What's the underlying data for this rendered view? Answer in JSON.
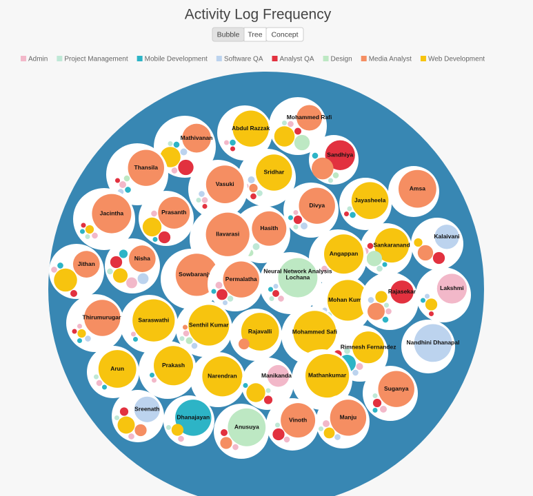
{
  "chart_data": {
    "type": "bubble",
    "title": "Activity Log Frequency",
    "views": [
      "Bubble",
      "Tree",
      "Concept"
    ],
    "active_view": "Bubble",
    "series": [
      {
        "name": "Admin",
        "color": "#f2b8c9"
      },
      {
        "name": "Project Management",
        "color": "#bfe8d6"
      },
      {
        "name": "Mobile Development",
        "color": "#2db4c6"
      },
      {
        "name": "Software QA",
        "color": "#bcd3ee"
      },
      {
        "name": "Analyst QA",
        "color": "#e2313f"
      },
      {
        "name": "Design",
        "color": "#bde8c3"
      },
      {
        "name": "Media Analyst",
        "color": "#f58e62"
      },
      {
        "name": "Web Development",
        "color": "#f7c40f"
      }
    ],
    "people": [
      {
        "name": "Mohammed Rafi",
        "values": [
          3,
          2,
          null,
          null,
          4,
          20,
          55,
          35
        ]
      },
      {
        "name": "Abdul Razzak",
        "values": [
          2,
          null,
          3,
          null,
          2,
          null,
          null,
          110
        ]
      },
      {
        "name": "Mathivanan",
        "values": [
          3,
          2,
          3,
          4,
          20,
          null,
          70,
          35
        ]
      },
      {
        "name": "Sandhiya",
        "values": [
          null,
          2,
          3,
          null,
          75,
          3,
          40,
          null
        ]
      },
      {
        "name": "Thansila",
        "values": [
          4,
          null,
          3,
          3,
          2,
          3,
          110,
          null
        ]
      },
      {
        "name": "Sridhar",
        "values": [
          2,
          3,
          null,
          4,
          3,
          null,
          6,
          110
        ]
      },
      {
        "name": "Vasuki",
        "values": [
          3,
          2,
          null,
          3,
          2,
          null,
          120,
          null
        ]
      },
      {
        "name": "Amsa",
        "values": [
          null,
          null,
          null,
          null,
          null,
          null,
          120,
          null
        ]
      },
      {
        "name": "Jayasheela",
        "values": [
          null,
          2,
          3,
          null,
          2,
          null,
          null,
          115
        ]
      },
      {
        "name": "Divya",
        "values": [
          2,
          2,
          2,
          4,
          6,
          null,
          110,
          null
        ]
      },
      {
        "name": "Jacintha",
        "values": [
          3,
          2,
          2,
          null,
          2,
          null,
          130,
          6
        ]
      },
      {
        "name": "Prasanth",
        "values": [
          3,
          null,
          2,
          null,
          12,
          null,
          85,
          30
        ]
      },
      {
        "name": "Kalaivani",
        "values": [
          null,
          null,
          null,
          50,
          12,
          null,
          20,
          6
        ]
      },
      {
        "name": "Hasith",
        "values": [
          3,
          4,
          null,
          4,
          2,
          4,
          100,
          6
        ]
      },
      {
        "name": "Ilavarasi",
        "values": [
          null,
          null,
          null,
          null,
          null,
          null,
          160,
          null
        ]
      },
      {
        "name": "Sankaranand",
        "values": [
          4,
          3,
          2,
          null,
          3,
          20,
          null,
          100
        ]
      },
      {
        "name": "Angappan",
        "values": [
          3,
          null,
          null,
          null,
          null,
          null,
          null,
          130
        ]
      },
      {
        "name": "Jithan",
        "values": [
          3,
          null,
          3,
          null,
          4,
          null,
          60,
          45
        ]
      },
      {
        "name": "Nisha",
        "values": [
          10,
          3,
          6,
          10,
          12,
          null,
          60,
          18
        ]
      },
      {
        "name": "Sowbaranjya",
        "values": [
          null,
          null,
          null,
          null,
          null,
          null,
          150,
          null
        ]
      },
      {
        "name": "Permalatha",
        "values": [
          4,
          3,
          2,
          2,
          10,
          null,
          110,
          null
        ]
      },
      {
        "name": "Lochana",
        "label": "Neural Network Analysis",
        "values": [
          3,
          2,
          2,
          2,
          4,
          130,
          null,
          null
        ]
      },
      {
        "name": "Lakshmi",
        "values": [
          75,
          null,
          2,
          2,
          2,
          null,
          null,
          12
        ]
      },
      {
        "name": "Mohan Kumar",
        "values": [
          null,
          3,
          2,
          2,
          null,
          null,
          null,
          140
        ]
      },
      {
        "name": "Rajasekar",
        "values": [
          3,
          2,
          3,
          3,
          45,
          null,
          25,
          12
        ]
      },
      {
        "name": "Thirumurugan",
        "values": [
          2,
          null,
          2,
          3,
          2,
          null,
          110,
          6
        ]
      },
      {
        "name": "Saraswathi",
        "values": [
          2,
          null,
          2,
          null,
          null,
          null,
          null,
          150
        ]
      },
      {
        "name": "Senthil Kumar",
        "values": [
          3,
          2,
          null,
          3,
          null,
          4,
          2,
          140
        ]
      },
      {
        "name": "Rajavalli",
        "values": [
          null,
          null,
          null,
          null,
          null,
          null,
          10,
          120
        ]
      },
      {
        "name": "Mohammed Safi",
        "values": [
          null,
          null,
          null,
          null,
          null,
          null,
          null,
          155
        ]
      },
      {
        "name": "Nandhini Dhanapal",
        "values": [
          null,
          null,
          null,
          120,
          null,
          null,
          null,
          null
        ]
      },
      {
        "name": "Rimnesh Fernandez",
        "values": [
          4,
          3,
          25,
          3,
          5,
          null,
          null,
          85
        ]
      },
      {
        "name": "Arun",
        "values": [
          3,
          2,
          2,
          null,
          null,
          null,
          null,
          120
        ]
      },
      {
        "name": "Prakash",
        "values": [
          2,
          null,
          2,
          null,
          null,
          null,
          null,
          130
        ]
      },
      {
        "name": "Narendran",
        "values": [
          null,
          null,
          null,
          null,
          null,
          null,
          null,
          135
        ]
      },
      {
        "name": "Manikandan",
        "values": [
          40,
          2,
          2,
          null,
          6,
          null,
          null,
          30
        ]
      },
      {
        "name": "Mathankumar",
        "values": [
          null,
          null,
          null,
          null,
          null,
          null,
          null,
          160
        ]
      },
      {
        "name": "Suganya",
        "values": [
          4,
          2,
          2,
          null,
          6,
          null,
          110,
          null
        ]
      },
      {
        "name": "Sreenath",
        "values": [
          3,
          2,
          null,
          55,
          6,
          null,
          12,
          25
        ]
      },
      {
        "name": "Dhanajayan",
        "values": [
          3,
          2,
          110,
          null,
          null,
          null,
          null,
          12
        ]
      },
      {
        "name": "Anusuya",
        "values": [
          3,
          null,
          null,
          null,
          4,
          120,
          12,
          null
        ]
      },
      {
        "name": "Vinoth",
        "values": [
          3,
          2,
          null,
          null,
          12,
          null,
          100,
          null
        ]
      },
      {
        "name": "Manju",
        "values": [
          4,
          2,
          null,
          3,
          null,
          null,
          110,
          10
        ]
      }
    ]
  }
}
